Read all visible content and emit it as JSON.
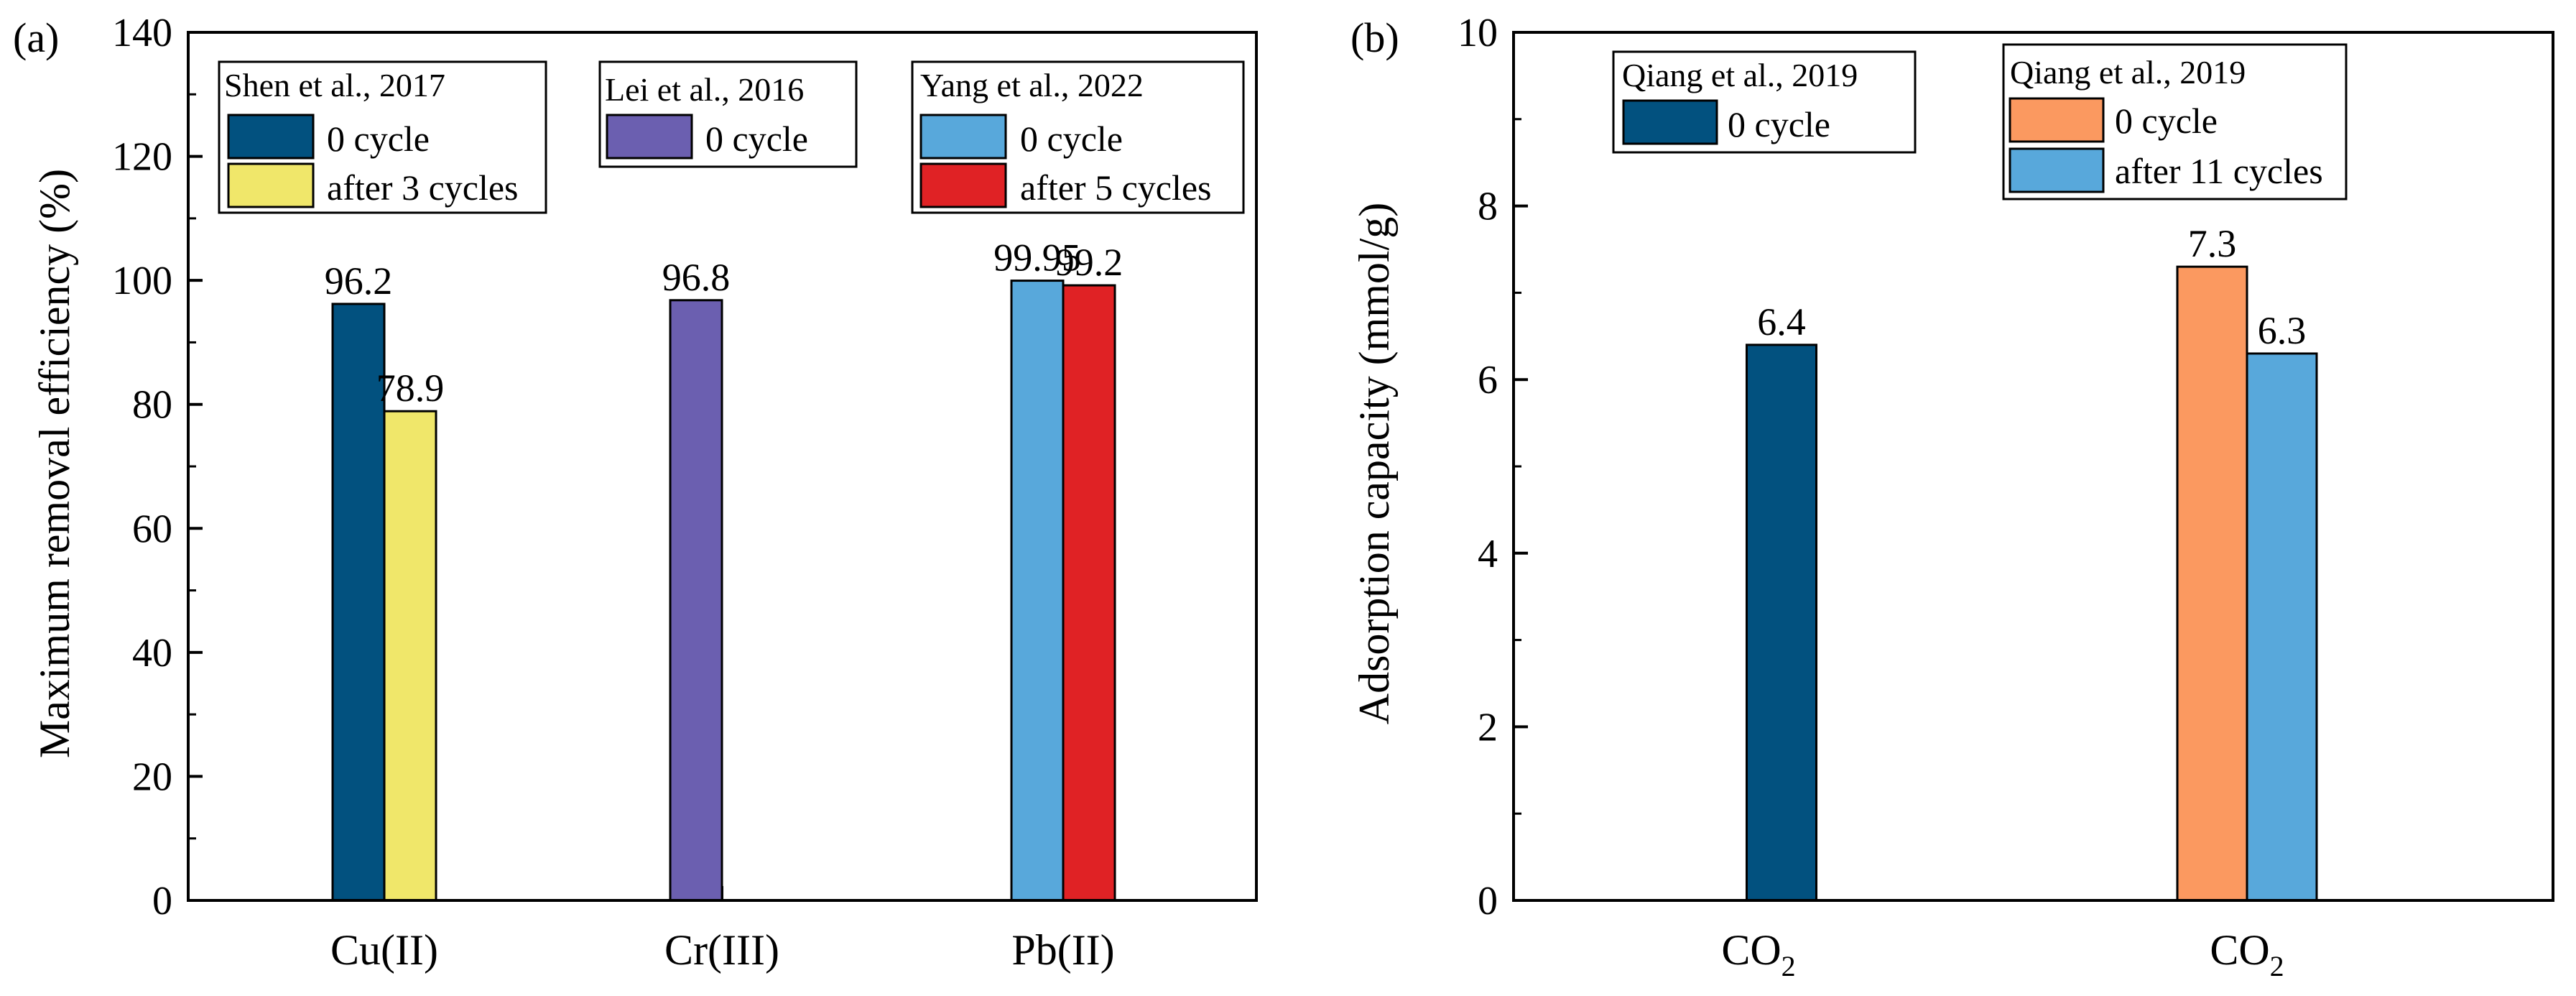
{
  "colors": {
    "navy": "#02517f",
    "yellow": "#f0e76a",
    "purple": "#6b5fb0",
    "lightblue": "#58a8db",
    "red": "#e02225",
    "orange": "#fb9960"
  },
  "chart_data": [
    {
      "type": "bar",
      "panel_label": "(a)",
      "title": "",
      "xlabel": "",
      "ylabel": "Maximum removal efficiency (%)",
      "ylim": [
        0,
        140
      ],
      "yticks": [
        "0",
        "20",
        "40",
        "60",
        "80",
        "100",
        "120",
        "140"
      ],
      "categories": [
        "Cu(II)",
        "Cr(III)",
        "Pb(II)"
      ],
      "bars": [
        {
          "category": 0,
          "slot": -1,
          "value": 96.2,
          "label": "96.2",
          "color": "#02517f",
          "name": "Shen 0 cycle"
        },
        {
          "category": 0,
          "slot": 0,
          "value": 78.9,
          "label": "78.9",
          "color": "#f0e76a",
          "name": "Shen after 3 cycles"
        },
        {
          "category": 1,
          "slot": -1,
          "value": 96.8,
          "label": "96.8",
          "color": "#6b5fb0",
          "name": "Lei 0 cycle"
        },
        {
          "category": 2,
          "slot": -1,
          "value": 99.95,
          "label": "99.95",
          "color": "#58a8db",
          "name": "Yang 0 cycle"
        },
        {
          "category": 2,
          "slot": 0,
          "value": 99.2,
          "label": "99.2",
          "color": "#e02225",
          "name": "Yang after 5 cycles"
        }
      ],
      "legends": [
        {
          "title": "Shen et al., 2017",
          "entries": [
            {
              "label": "0 cycle",
              "color": "#02517f"
            },
            {
              "label": "after 3 cycles",
              "color": "#f0e76a"
            }
          ]
        },
        {
          "title": "Lei et al., 2016",
          "entries": [
            {
              "label": "0 cycle",
              "color": "#6b5fb0"
            }
          ]
        },
        {
          "title": "Yang et al., 2022",
          "entries": [
            {
              "label": "0 cycle",
              "color": "#58a8db"
            },
            {
              "label": "after 5 cycles",
              "color": "#e02225"
            }
          ]
        }
      ]
    },
    {
      "type": "bar",
      "panel_label": "(b)",
      "title": "",
      "xlabel": "",
      "ylabel": "Adsorption capacity (mmol/g)",
      "ylim": [
        0,
        10
      ],
      "yticks": [
        "0",
        "2",
        "4",
        "6",
        "8",
        "10"
      ],
      "categories": [
        "CO",
        "CO"
      ],
      "category_subscripts": [
        "2",
        "2"
      ],
      "bars": [
        {
          "category": 0,
          "slot": -0.5,
          "value": 6.4,
          "label": "6.4",
          "color": "#02517f",
          "name": "Qiang 0 cycle"
        },
        {
          "category": 1,
          "slot": -1,
          "value": 7.3,
          "label": "7.3",
          "color": "#fb9960",
          "name": "Qiang2 0 cycle"
        },
        {
          "category": 1,
          "slot": 0,
          "value": 6.3,
          "label": "6.3",
          "color": "#58a8db",
          "name": "Qiang2 after 11 cycles"
        }
      ],
      "legends": [
        {
          "title": "Qiang et al., 2019",
          "entries": [
            {
              "label": "0 cycle",
              "color": "#02517f"
            }
          ]
        },
        {
          "title": "Qiang et al., 2019",
          "entries": [
            {
              "label": "0 cycle",
              "color": "#fb9960"
            },
            {
              "label": "after 11 cycles",
              "color": "#58a8db"
            }
          ]
        }
      ]
    }
  ]
}
